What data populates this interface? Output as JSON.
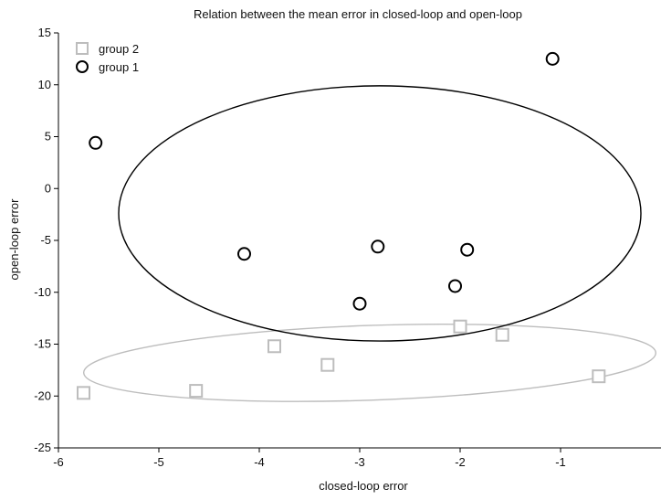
{
  "chart_data": {
    "type": "scatter",
    "title": "Relation between the mean error in closed-loop and open-loop",
    "xlabel": "closed-loop error",
    "ylabel": "open-loop error",
    "xlim": [
      -6,
      0
    ],
    "ylim": [
      -25,
      15
    ],
    "x_ticks": [
      -6,
      -5,
      -4,
      -3,
      -2,
      -1
    ],
    "x_tick_labels": [
      "-6",
      "-5",
      "-4",
      "-3",
      "-2",
      "-1"
    ],
    "y_ticks": [
      15,
      10,
      5,
      0,
      -5,
      -10,
      -15,
      -20,
      -25
    ],
    "y_tick_labels": [
      "15",
      "10",
      "5",
      "0",
      "-5",
      "-10",
      "-15",
      "-20",
      "-25"
    ],
    "grid": false,
    "legend_position": "top-left",
    "series": [
      {
        "name": "group 2",
        "marker": "square",
        "color": "#bdbdbd",
        "points": [
          {
            "x": -5.75,
            "y": -19.7
          },
          {
            "x": -4.63,
            "y": -19.5
          },
          {
            "x": -3.85,
            "y": -15.2
          },
          {
            "x": -3.32,
            "y": -17.0
          },
          {
            "x": -2.0,
            "y": -13.3
          },
          {
            "x": -1.58,
            "y": -14.1
          },
          {
            "x": -0.62,
            "y": -18.1
          }
        ],
        "ellipse": {
          "cx": -2.9,
          "cy": -16.8,
          "rx": 2.85,
          "ry": 3.6,
          "rotation_deg": -2
        }
      },
      {
        "name": "group 1",
        "marker": "circle",
        "color": "#000000",
        "points": [
          {
            "x": -5.63,
            "y": 4.4
          },
          {
            "x": -4.15,
            "y": -6.3
          },
          {
            "x": -3.0,
            "y": -11.1
          },
          {
            "x": -2.82,
            "y": -5.6
          },
          {
            "x": -2.05,
            "y": -9.4
          },
          {
            "x": -1.93,
            "y": -5.9
          },
          {
            "x": -1.08,
            "y": 12.5
          }
        ],
        "ellipse": {
          "cx": -2.8,
          "cy": -2.4,
          "rx": 2.6,
          "ry": 12.3,
          "rotation_deg": 0
        }
      }
    ]
  }
}
